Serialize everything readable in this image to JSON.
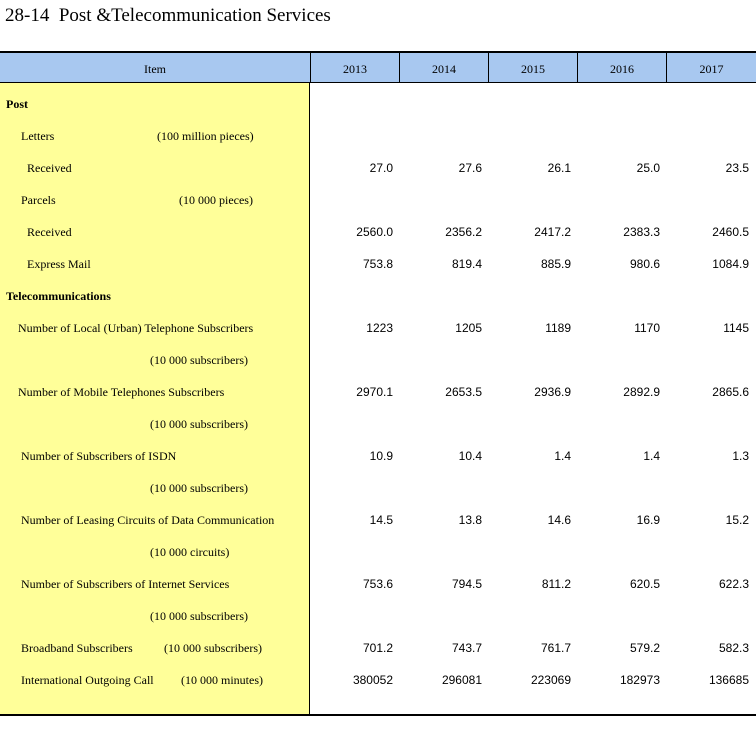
{
  "title": "28-14  Post &Telecommunication Services",
  "header": {
    "item": "Item",
    "years": [
      "2013",
      "2014",
      "2015",
      "2016",
      "2017"
    ]
  },
  "rows": [
    {
      "label": "Post",
      "unit": "",
      "values": [
        "",
        "",
        "",
        "",
        ""
      ]
    },
    {
      "label": "Letters",
      "unit": "(100 million pieces)",
      "values": [
        "",
        "",
        "",
        "",
        ""
      ]
    },
    {
      "label": "Received",
      "unit": "",
      "values": [
        "27.0",
        "27.6",
        "26.1",
        "25.0",
        "23.5"
      ]
    },
    {
      "label": "Parcels",
      "unit": "(10 000 pieces)",
      "values": [
        "",
        "",
        "",
        "",
        ""
      ]
    },
    {
      "label": "Received",
      "unit": "",
      "values": [
        "2560.0",
        "2356.2",
        "2417.2",
        "2383.3",
        "2460.5"
      ]
    },
    {
      "label": "Express Mail",
      "unit": "",
      "values": [
        "753.8",
        "819.4",
        "885.9",
        "980.6",
        "1084.9"
      ]
    },
    {
      "label": "Telecommunications",
      "unit": "",
      "values": [
        "",
        "",
        "",
        "",
        ""
      ]
    },
    {
      "label": "Number of Local (Urban) Telephone Subscribers",
      "unit": "",
      "values": [
        "1223",
        "1205",
        "1189",
        "1170",
        "1145"
      ]
    },
    {
      "label": "",
      "unit": "(10 000 subscribers)",
      "values": [
        "",
        "",
        "",
        "",
        ""
      ]
    },
    {
      "label": "Number of Mobile Telephones Subscribers",
      "unit": "",
      "values": [
        "2970.1",
        "2653.5",
        "2936.9",
        "2892.9",
        "2865.6"
      ]
    },
    {
      "label": "",
      "unit": "(10 000 subscribers)",
      "values": [
        "",
        "",
        "",
        "",
        ""
      ]
    },
    {
      "label": "Number of Subscribers of ISDN",
      "unit": "",
      "values": [
        "10.9",
        "10.4",
        "1.4",
        "1.4",
        "1.3"
      ]
    },
    {
      "label": "",
      "unit": "(10 000 subscribers)",
      "values": [
        "",
        "",
        "",
        "",
        ""
      ]
    },
    {
      "label": "Number of Leasing Circuits of Data Communication",
      "unit": "",
      "values": [
        "14.5",
        "13.8",
        "14.6",
        "16.9",
        "15.2"
      ]
    },
    {
      "label": "",
      "unit": "(10 000 circuits)",
      "values": [
        "",
        "",
        "",
        "",
        ""
      ]
    },
    {
      "label": "Number of Subscribers of Internet Services",
      "unit": "",
      "values": [
        "753.6",
        "794.5",
        "811.2",
        "620.5",
        "622.3"
      ]
    },
    {
      "label": "",
      "unit": "(10 000 subscribers)",
      "values": [
        "",
        "",
        "",
        "",
        ""
      ]
    },
    {
      "label": "Broadband Subscribers",
      "unit": "(10 000 subscribers)",
      "values": [
        "701.2",
        "743.7",
        "761.7",
        "579.2",
        "582.3"
      ]
    },
    {
      "label": "International  Outgoing Call",
      "unit": "(10 000 minutes)",
      "values": [
        "380052",
        "296081",
        "223069",
        "182973",
        "136685"
      ]
    }
  ]
}
